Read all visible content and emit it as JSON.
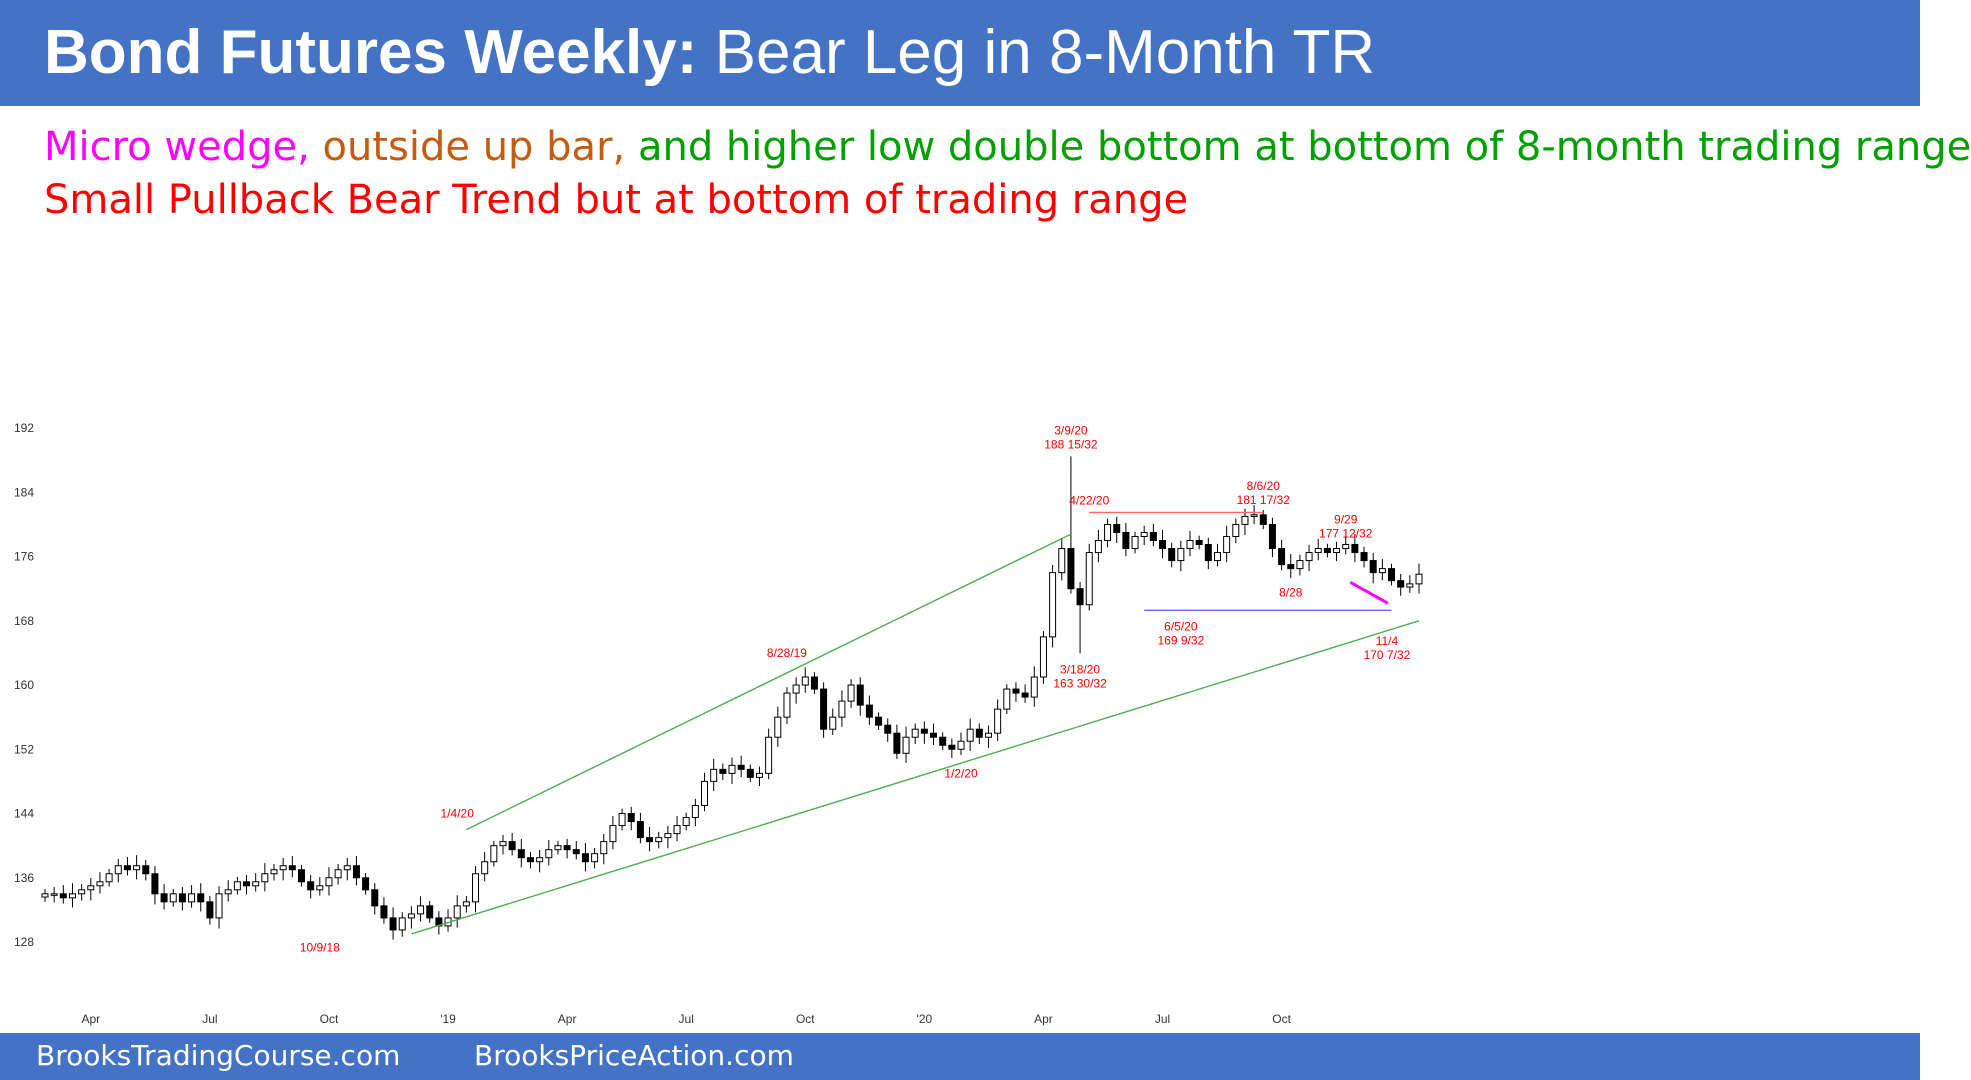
{
  "header": {
    "title_bold": "Bond Futures Weekly:",
    "title_rest": " Bear Leg in 8-Month TR"
  },
  "subtitle": {
    "line1": [
      {
        "text": "Micro wedge,",
        "color": "#ff00ff"
      },
      {
        "text": " outside up bar,",
        "color": "#c55a11"
      },
      {
        "text": " and higher low double bottom at bottom of 8-month trading range",
        "color": "#00a000"
      }
    ],
    "line2": {
      "text": "Small Pullback Bear Trend but at bottom of trading range",
      "color": "#ff0000"
    }
  },
  "footer": {
    "left": "BrooksTradingCourse.com",
    "right": "BrooksPriceAction.com"
  },
  "chart_data": {
    "type": "candlestick",
    "title": "Bond Futures Weekly",
    "x_unit": "weeks from first bar",
    "ylim": [
      124,
      194
    ],
    "y_ticks": [
      {
        "v": 128,
        "label": "128"
      },
      {
        "v": 136,
        "label": "136"
      },
      {
        "v": 144,
        "label": "144"
      },
      {
        "v": 152,
        "label": "152"
      },
      {
        "v": 160,
        "label": "160"
      },
      {
        "v": 168,
        "label": "168"
      },
      {
        "v": 176,
        "label": "176"
      },
      {
        "v": 184,
        "label": "184"
      },
      {
        "v": 192,
        "label": "192"
      }
    ],
    "x_ticks": [
      {
        "w": 5,
        "label": "Apr"
      },
      {
        "w": 18,
        "label": "Jul"
      },
      {
        "w": 31,
        "label": "Oct"
      },
      {
        "w": 44,
        "label": "'19"
      },
      {
        "w": 57,
        "label": "Apr"
      },
      {
        "w": 70,
        "label": "Jul"
      },
      {
        "w": 83,
        "label": "Oct"
      },
      {
        "w": 96,
        "label": "'20"
      },
      {
        "w": 109,
        "label": "Apr"
      },
      {
        "w": 122,
        "label": "Jul"
      },
      {
        "w": 135,
        "label": "Oct"
      }
    ],
    "bar_closes": [
      134,
      134,
      133.5,
      134,
      134.5,
      135,
      135.5,
      136.5,
      137.5,
      137,
      137.5,
      136.5,
      134,
      133,
      134,
      133,
      134,
      133,
      131,
      134,
      134.5,
      135.5,
      135,
      135.5,
      136.5,
      137,
      137.5,
      137,
      135.5,
      134.5,
      135,
      136,
      137,
      137.5,
      136,
      134.5,
      132.5,
      131,
      129.5,
      131,
      131.5,
      132.5,
      131,
      130,
      131,
      132.5,
      133,
      136.5,
      138,
      140,
      140.5,
      139.5,
      138.5,
      138,
      138.5,
      139.5,
      140,
      139.5,
      139,
      138,
      139,
      140.5,
      142.5,
      144,
      143,
      141,
      140.5,
      141,
      141.5,
      142.5,
      143.5,
      145,
      148,
      149.5,
      149,
      150,
      149.5,
      148.5,
      149,
      153.5,
      156,
      159,
      160,
      161,
      159.5,
      154.5,
      156,
      158,
      160,
      157.5,
      156,
      155,
      154,
      151.5,
      153.5,
      154.5,
      154,
      153.5,
      152.5,
      152,
      153,
      154.5,
      153.5,
      154,
      157,
      159.5,
      159,
      158.5,
      161,
      166,
      174,
      177,
      172,
      170,
      176.5,
      178,
      180,
      179,
      177,
      178.5,
      179,
      178,
      177,
      175.5,
      177,
      178,
      177.5,
      175.5,
      176.5,
      178.5,
      180,
      181,
      181.2,
      180,
      177,
      175,
      174.5,
      175.5,
      176.5,
      177,
      176.5,
      177,
      177.5,
      176.5,
      175.5,
      174,
      174.5,
      173,
      172.2,
      172.6,
      173.8
    ],
    "series_color": "#000000",
    "annotations": [
      {
        "w": 30,
        "v": 129.3,
        "lines": [
          "10/9/18"
        ],
        "color": "#ff0000",
        "anchor": "below"
      },
      {
        "w": 45,
        "v": 142.5,
        "lines": [
          "1/4/20"
        ],
        "color": "#ff0000",
        "anchor": "above"
      },
      {
        "w": 81,
        "v": 162.5,
        "lines": [
          "8/28/19"
        ],
        "color": "#ff0000",
        "anchor": "above"
      },
      {
        "w": 100,
        "v": 151,
        "lines": [
          "1/2/20"
        ],
        "color": "#ff0000",
        "anchor": "below"
      },
      {
        "w": 112,
        "v": 188.47,
        "lines": [
          "3/9/20",
          "188 15/32"
        ],
        "color": "#ff0000",
        "anchor": "above"
      },
      {
        "w": 114,
        "v": 181.5,
        "lines": [
          "4/22/20"
        ],
        "color": "#ff0000",
        "anchor": "above"
      },
      {
        "w": 113,
        "v": 163.94,
        "lines": [
          "3/18/20",
          "163 30/32"
        ],
        "color": "#ff0000",
        "anchor": "below"
      },
      {
        "w": 124,
        "v": 169.3,
        "lines": [
          "6/5/20",
          "169 9/32"
        ],
        "color": "#ff0000",
        "anchor": "below"
      },
      {
        "w": 133,
        "v": 181.53,
        "lines": [
          "8/6/20",
          "181 17/32"
        ],
        "color": "#ff0000",
        "anchor": "above"
      },
      {
        "w": 142,
        "v": 177.38,
        "lines": [
          "9/29",
          "177 12/32"
        ],
        "color": "#ff0000",
        "anchor": "above"
      },
      {
        "w": 136,
        "v": 173.5,
        "lines": [
          "8/28"
        ],
        "color": "#ff0000",
        "anchor": "below"
      },
      {
        "w": 146.5,
        "v": 167.5,
        "lines": [
          "11/4",
          "170 7/32"
        ],
        "color": "#ff0000",
        "anchor": "below"
      }
    ],
    "trendlines": [
      {
        "name": "upper-channel-line",
        "color": "#4caf50",
        "from": {
          "w": 46,
          "v": 142
        },
        "to": {
          "w": 112,
          "v": 178.8
        }
      },
      {
        "name": "lower-channel-line",
        "color": "#4caf50",
        "from": {
          "w": 40,
          "v": 129
        },
        "to": {
          "w": 150,
          "v": 168
        }
      },
      {
        "name": "range-top-line",
        "color": "#ff6666",
        "from": {
          "w": 114,
          "v": 181.5
        },
        "to": {
          "w": 133,
          "v": 181.5
        }
      },
      {
        "name": "range-bottom-line",
        "color": "#6666ff",
        "from": {
          "w": 120,
          "v": 169.3
        },
        "to": {
          "w": 147,
          "v": 169.3
        }
      },
      {
        "name": "micro-wedge-line",
        "color": "#ff00ff",
        "from": {
          "w": 142.5,
          "v": 172.8
        },
        "to": {
          "w": 146.6,
          "v": 170.2
        }
      }
    ]
  }
}
